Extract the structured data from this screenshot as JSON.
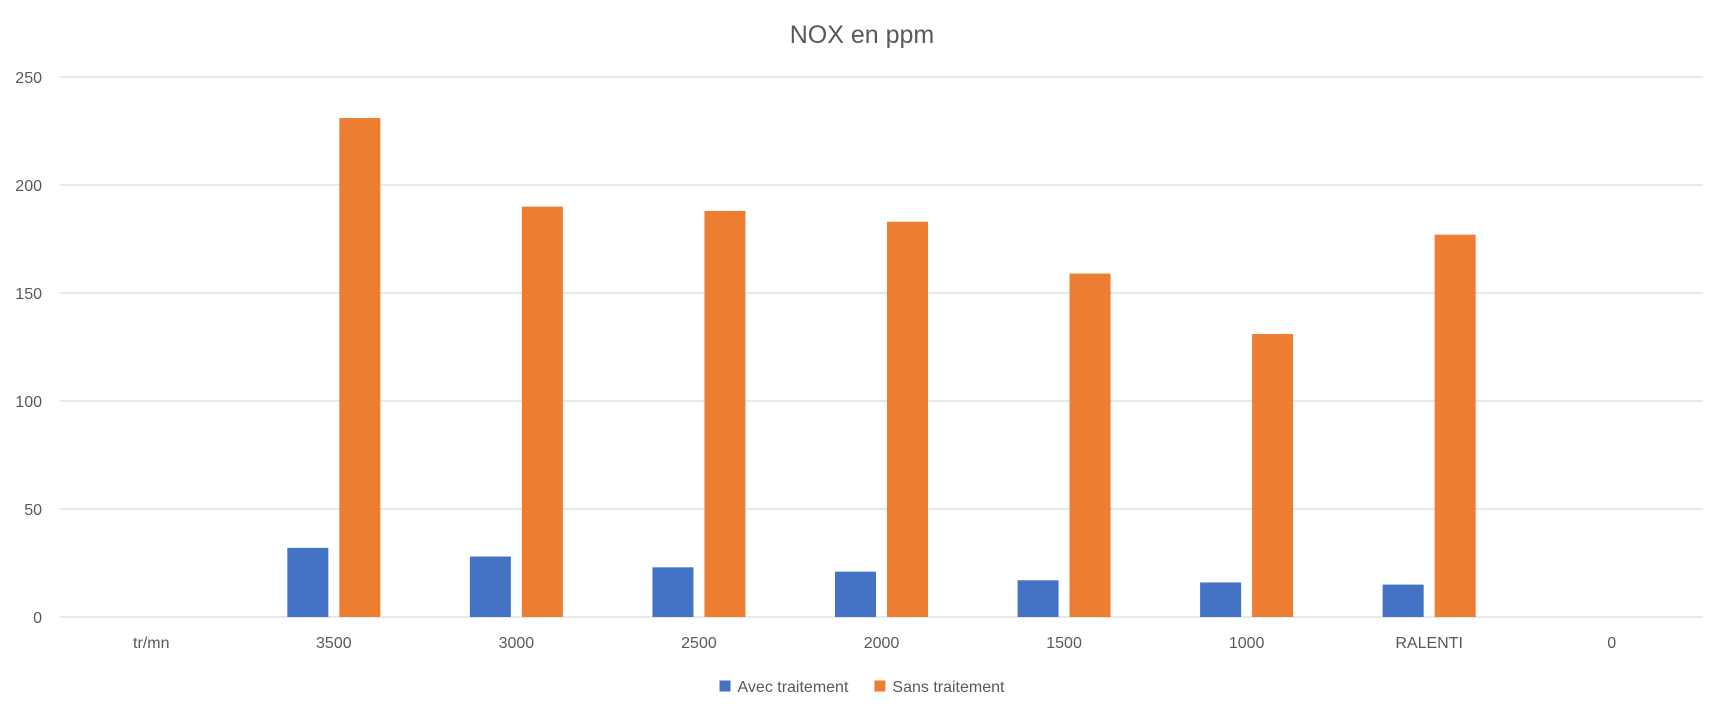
{
  "chart_data": {
    "type": "bar",
    "title": "NOX en ppm",
    "xlabel": "",
    "ylabel": "",
    "categories": [
      "tr/mn",
      "3500",
      "3000",
      "2500",
      "2000",
      "1500",
      "1000",
      "RALENTI",
      "0"
    ],
    "series": [
      {
        "name": "Avec traitement",
        "color": "#4472c4",
        "values": [
          null,
          32,
          28,
          23,
          21,
          17,
          16,
          15,
          null
        ]
      },
      {
        "name": "Sans traitement",
        "color": "#ed7d31",
        "values": [
          null,
          231,
          190,
          188,
          183,
          159,
          131,
          177,
          null
        ]
      }
    ],
    "ylim": [
      0,
      250
    ],
    "yticks": [
      "0",
      "50",
      "100",
      "150",
      "200",
      "250"
    ],
    "grid": true,
    "legend_position": "bottom"
  }
}
